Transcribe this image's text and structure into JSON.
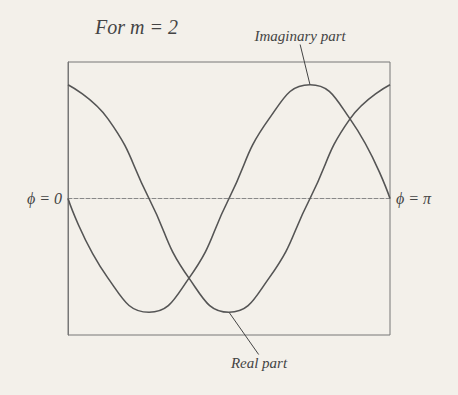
{
  "chart_data": {
    "type": "line",
    "title": "For m = 2",
    "x": [
      0,
      0.39,
      0.79,
      1.18,
      1.57,
      1.96,
      2.36,
      2.75,
      3.14
    ],
    "series": [
      {
        "name": "Real part",
        "color": "#555555",
        "values": [
          1,
          0.7,
          0,
          -0.7,
          -1,
          -0.7,
          0,
          0.7,
          1
        ]
      },
      {
        "name": "Imaginary part",
        "color": "#555555",
        "values": [
          0,
          -0.7,
          -1,
          -0.7,
          0,
          0.7,
          1,
          0.7,
          0
        ]
      }
    ],
    "xlim": [
      0,
      3.14
    ],
    "ylim": [
      -1.2,
      1.2
    ],
    "xticks": [
      {
        "value": 0,
        "label": "ϕ = 0"
      },
      {
        "value": 3.14,
        "label": "ϕ = π"
      }
    ],
    "tick_labels": "x",
    "grid": false,
    "line_style": "solid"
  }
}
